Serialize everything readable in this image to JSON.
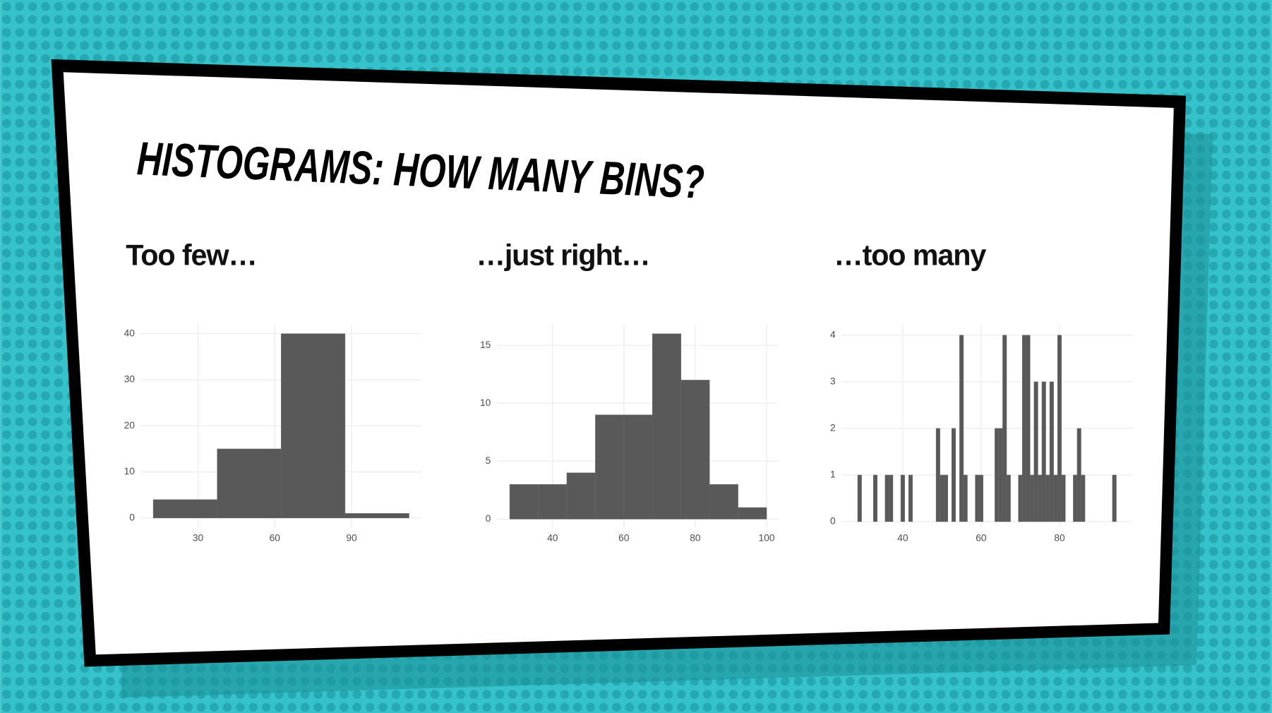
{
  "title": "HISTOGRAMS: HOW MANY BINS?",
  "chart_data": [
    {
      "type": "histogram",
      "title": "Too few…",
      "color": "#595959",
      "grid": true,
      "bins": [
        12.5,
        37.5,
        62.5,
        87.5,
        112.5
      ],
      "values": [
        4,
        15,
        40,
        1
      ],
      "xlim": [
        7.5,
        117.5
      ],
      "xticks": [
        30,
        60,
        90
      ],
      "ylim": [
        -2,
        42
      ],
      "yticks": [
        0,
        10,
        20,
        30,
        40
      ]
    },
    {
      "type": "histogram",
      "title": "…just right…",
      "color": "#595959",
      "grid": true,
      "bins": [
        28,
        36,
        44,
        52,
        60,
        68,
        76,
        84,
        92,
        100
      ],
      "values": [
        3,
        3,
        4,
        9,
        9,
        16,
        12,
        3,
        1
      ],
      "xlim": [
        24.3,
        103.4
      ],
      "xticks": [
        40,
        60,
        80,
        100
      ],
      "ylim": [
        -0.7,
        16.8
      ],
      "yticks": [
        0,
        5,
        10,
        15
      ]
    },
    {
      "type": "histogram",
      "title": "…too many",
      "color": "#595959",
      "grid": true,
      "bins": [
        28.5,
        29.5,
        30.5,
        31.5,
        32.5,
        33.5,
        34.5,
        35.5,
        36.5,
        37.5,
        38.5,
        39.5,
        40.5,
        41.5,
        42.5,
        43.5,
        44.5,
        45.5,
        46.5,
        47.5,
        48.5,
        49.5,
        50.5,
        51.5,
        52.5,
        53.5,
        54.5,
        55.5,
        56.5,
        57.5,
        58.5,
        59.5,
        60.5,
        61.5,
        62.5,
        63.5,
        64.5,
        65.5,
        66.5,
        67.5,
        68.5,
        69.5,
        70.5,
        71.5,
        72.5,
        73.5,
        74.5,
        75.5,
        76.5,
        77.5,
        78.5,
        79.5,
        80.5,
        81.5,
        82.5,
        83.5,
        84.5,
        85.5,
        86.5,
        87.5,
        88.5,
        89.5,
        90.5,
        91.5,
        92.5,
        93.5,
        94.5
      ],
      "values": [
        1,
        0,
        0,
        0,
        1,
        0,
        0,
        1,
        1,
        0,
        0,
        1,
        0,
        1,
        0,
        0,
        0,
        0,
        0,
        0,
        2,
        1,
        1,
        0,
        2,
        0,
        4,
        1,
        0,
        0,
        1,
        1,
        0,
        0,
        0,
        2,
        2,
        4,
        1,
        0,
        0,
        1,
        4,
        4,
        1,
        3,
        1,
        3,
        1,
        3,
        1,
        4,
        1,
        0,
        0,
        1,
        2,
        1,
        0,
        0,
        0,
        0,
        0,
        0,
        0,
        1
      ],
      "xlim": [
        24.3,
        98.8
      ],
      "xticks": [
        40,
        60,
        80
      ],
      "ylim": [
        -0.12,
        4.23
      ],
      "yticks": [
        0,
        1,
        2,
        3,
        4
      ]
    }
  ]
}
